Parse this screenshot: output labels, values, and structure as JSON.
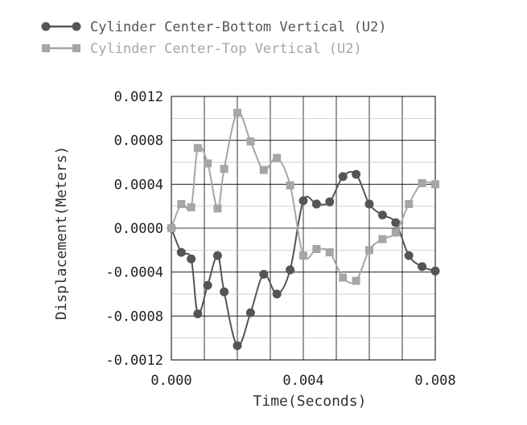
{
  "chart_data": {
    "type": "line",
    "title": "",
    "xlabel": "Time(Seconds)",
    "ylabel": "Displacement(Meters)",
    "xlim": [
      0.0,
      0.008
    ],
    "ylim": [
      -0.0012,
      0.0012
    ],
    "x_ticks": [
      "0.000",
      "0.004",
      "0.008"
    ],
    "y_ticks": [
      "0.0012",
      "0.0008",
      "0.0004",
      "0.0000",
      "-0.0004",
      "-0.0008",
      "-0.0012"
    ],
    "grid": true,
    "legend_position": "top-left",
    "series": [
      {
        "name": "Cylinder Center-Bottom Vertical (U2)",
        "color": "#555555",
        "marker": "circle",
        "x": [
          0.0,
          0.0003,
          0.0006,
          0.0008,
          0.0011,
          0.0014,
          0.0016,
          0.002,
          0.0024,
          0.0028,
          0.0032,
          0.0036,
          0.004,
          0.0044,
          0.0048,
          0.0052,
          0.0056,
          0.006,
          0.0064,
          0.0068,
          0.0072,
          0.0076,
          0.008
        ],
        "y": [
          0.0,
          -0.00022,
          -0.00028,
          -0.00078,
          -0.00052,
          -0.00025,
          -0.00058,
          -0.00107,
          -0.00077,
          -0.00042,
          -0.0006,
          -0.00038,
          0.00025,
          0.00022,
          0.00024,
          0.00047,
          0.00049,
          0.00022,
          0.00012,
          5e-05,
          -0.00025,
          -0.00035,
          -0.00039
        ]
      },
      {
        "name": "Cylinder Center-Top Vertical (U2)",
        "color": "#a6a6a6",
        "marker": "square",
        "x": [
          0.0,
          0.0003,
          0.0006,
          0.0008,
          0.0011,
          0.0014,
          0.0016,
          0.002,
          0.0024,
          0.0028,
          0.0032,
          0.0036,
          0.004,
          0.0044,
          0.0048,
          0.0052,
          0.0056,
          0.006,
          0.0064,
          0.0068,
          0.0072,
          0.0076,
          0.008
        ],
        "y": [
          0.0,
          0.00022,
          0.00019,
          0.00073,
          0.00059,
          0.00018,
          0.00054,
          0.00105,
          0.00079,
          0.00053,
          0.00064,
          0.00039,
          -0.00025,
          -0.00019,
          -0.00022,
          -0.00045,
          -0.00048,
          -0.0002,
          -0.0001,
          -4e-05,
          0.00022,
          0.00041,
          0.0004
        ]
      }
    ]
  }
}
